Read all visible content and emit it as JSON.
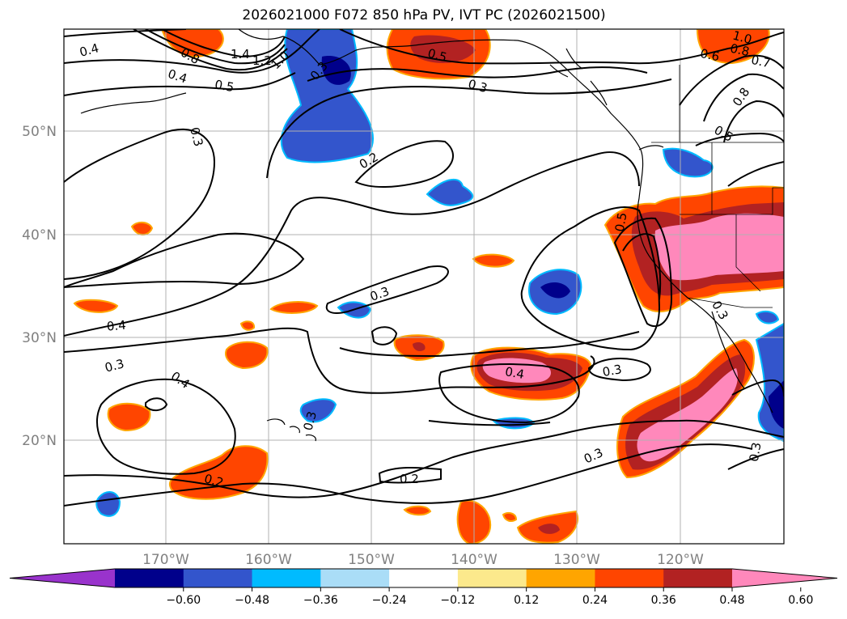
{
  "title": "2026021000 F072 850 hPa PV, IVT PC (2026021500)",
  "axes": {
    "lon_ticks": [
      "170°W",
      "160°W",
      "150°W",
      "140°W",
      "130°W",
      "120°W"
    ],
    "lat_ticks": [
      "50°N",
      "40°N",
      "30°N",
      "20°N"
    ]
  },
  "colorbar": {
    "extend": "both",
    "ticks": [
      "−0.60",
      "−0.48",
      "−0.36",
      "−0.24",
      "−0.12",
      "0.12",
      "0.24",
      "0.36",
      "0.48",
      "0.60"
    ],
    "colors": [
      "#9933cc",
      "#00008b",
      "#3355cc",
      "#00bbff",
      "#aaddf7",
      "#ffffff",
      "#fce98c",
      "#ffa500",
      "#ff4500",
      "#b22222",
      "#ff88bb"
    ]
  },
  "contour_labels": [
    "0.4",
    "1.4",
    "1.2",
    "1.0",
    "0.8",
    "0.4",
    "0.5",
    "0.3",
    "0.5",
    "0.3",
    "1.0",
    "0.8",
    "0.6",
    "0.7",
    "0.8",
    "0.5",
    "0.3",
    "0.2",
    "0.5",
    "0.3",
    "0.4",
    "0.3",
    "0.4",
    "0.3",
    "0.4",
    "0.3",
    "0.2",
    "0.2",
    "0.3",
    "0.3",
    "0.3"
  ]
}
